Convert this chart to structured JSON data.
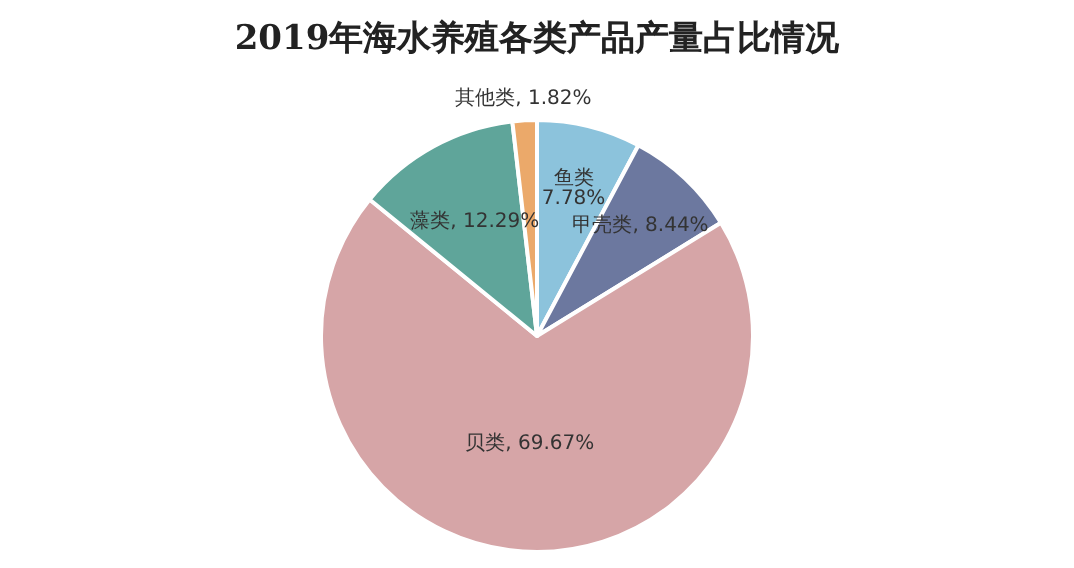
{
  "chart_data": {
    "type": "pie",
    "title": "2019年海水养殖各类产品产量占比情况",
    "categories": [
      "鱼类",
      "甲壳类",
      "贝类",
      "藻类",
      "其他类"
    ],
    "values": [
      7.78,
      8.44,
      69.67,
      12.29,
      1.82
    ],
    "value_labels": [
      "7.78%",
      "8.44%",
      "69.67%",
      "12.29%",
      "1.82%"
    ],
    "colors": [
      "#8cc3dc",
      "#6c789f",
      "#d6a5a7",
      "#5fa59a",
      "#eba96a"
    ]
  }
}
